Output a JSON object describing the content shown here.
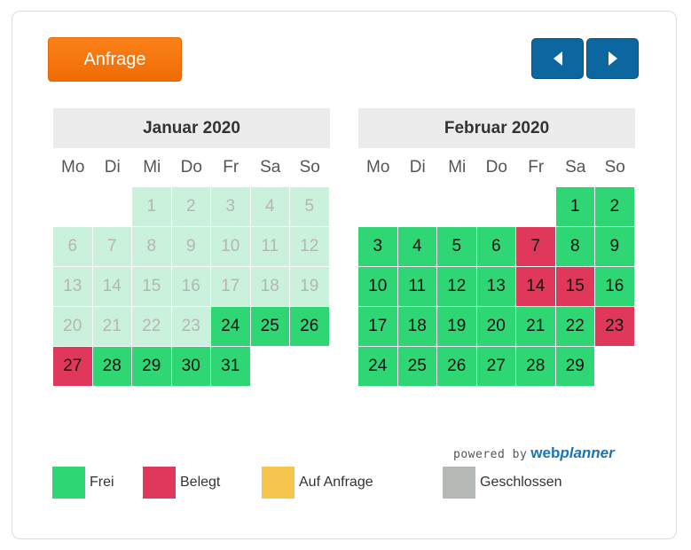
{
  "toolbar": {
    "request_label": "Anfrage",
    "prev_icon": "triangle-left",
    "next_icon": "triangle-right"
  },
  "weekdays": [
    "Mo",
    "Di",
    "Mi",
    "Do",
    "Fr",
    "Sa",
    "So"
  ],
  "months": [
    {
      "title": "Januar 2020",
      "start_offset": 2,
      "days": [
        {
          "d": "1",
          "s": "past"
        },
        {
          "d": "2",
          "s": "past"
        },
        {
          "d": "3",
          "s": "past"
        },
        {
          "d": "4",
          "s": "past"
        },
        {
          "d": "5",
          "s": "past"
        },
        {
          "d": "6",
          "s": "past"
        },
        {
          "d": "7",
          "s": "past"
        },
        {
          "d": "8",
          "s": "past"
        },
        {
          "d": "9",
          "s": "past"
        },
        {
          "d": "10",
          "s": "past"
        },
        {
          "d": "11",
          "s": "past"
        },
        {
          "d": "12",
          "s": "past"
        },
        {
          "d": "13",
          "s": "past"
        },
        {
          "d": "14",
          "s": "past"
        },
        {
          "d": "15",
          "s": "past"
        },
        {
          "d": "16",
          "s": "past"
        },
        {
          "d": "17",
          "s": "past"
        },
        {
          "d": "18",
          "s": "past"
        },
        {
          "d": "19",
          "s": "past"
        },
        {
          "d": "20",
          "s": "past"
        },
        {
          "d": "21",
          "s": "past"
        },
        {
          "d": "22",
          "s": "past"
        },
        {
          "d": "23",
          "s": "past"
        },
        {
          "d": "24",
          "s": "free"
        },
        {
          "d": "25",
          "s": "free"
        },
        {
          "d": "26",
          "s": "free"
        },
        {
          "d": "27",
          "s": "booked"
        },
        {
          "d": "28",
          "s": "free"
        },
        {
          "d": "29",
          "s": "free"
        },
        {
          "d": "30",
          "s": "free"
        },
        {
          "d": "31",
          "s": "free"
        }
      ]
    },
    {
      "title": "Februar 2020",
      "start_offset": 5,
      "days": [
        {
          "d": "1",
          "s": "free"
        },
        {
          "d": "2",
          "s": "free"
        },
        {
          "d": "3",
          "s": "free"
        },
        {
          "d": "4",
          "s": "free"
        },
        {
          "d": "5",
          "s": "free"
        },
        {
          "d": "6",
          "s": "free"
        },
        {
          "d": "7",
          "s": "booked"
        },
        {
          "d": "8",
          "s": "free"
        },
        {
          "d": "9",
          "s": "free"
        },
        {
          "d": "10",
          "s": "free"
        },
        {
          "d": "11",
          "s": "free"
        },
        {
          "d": "12",
          "s": "free"
        },
        {
          "d": "13",
          "s": "free"
        },
        {
          "d": "14",
          "s": "booked"
        },
        {
          "d": "15",
          "s": "booked"
        },
        {
          "d": "16",
          "s": "free"
        },
        {
          "d": "17",
          "s": "free"
        },
        {
          "d": "18",
          "s": "free"
        },
        {
          "d": "19",
          "s": "free"
        },
        {
          "d": "20",
          "s": "free"
        },
        {
          "d": "21",
          "s": "free"
        },
        {
          "d": "22",
          "s": "free"
        },
        {
          "d": "23",
          "s": "booked"
        },
        {
          "d": "24",
          "s": "free"
        },
        {
          "d": "25",
          "s": "free"
        },
        {
          "d": "26",
          "s": "free"
        },
        {
          "d": "27",
          "s": "free"
        },
        {
          "d": "28",
          "s": "free"
        },
        {
          "d": "29",
          "s": "free"
        }
      ]
    }
  ],
  "powered_by": {
    "text": "powered by",
    "brand_web": "web",
    "brand_planner": "planner"
  },
  "legend": [
    {
      "label": "Frei",
      "color": "#2ed674"
    },
    {
      "label": "Belegt",
      "color": "#e0385a"
    },
    {
      "label": "Auf Anfrage",
      "color": "#f7c44e"
    },
    {
      "label": "Geschlossen",
      "color": "#b5bab7"
    }
  ],
  "colors": {
    "free": "#2ed674",
    "booked": "#e0385a",
    "past": "#c9f1dc",
    "accent_orange": "#f47a10",
    "nav_blue": "#0c66a0"
  }
}
